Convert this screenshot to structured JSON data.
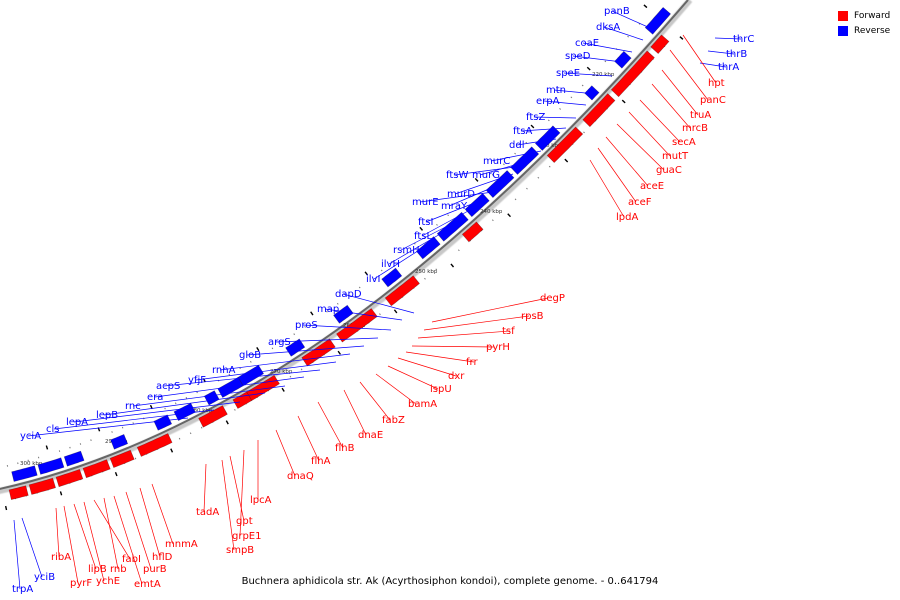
{
  "legend": {
    "forward_label": "Forward",
    "reverse_label": "Reverse",
    "forward_color": "#ff0000",
    "reverse_color": "#0000ff"
  },
  "caption": "Buchnera aphidicola str. Ak (Acyrthosiphon kondoi), complete genome. - 0..641794",
  "kbp_ticks": [
    "220 kbp",
    "230 kbp",
    "240 kbp",
    "250 kbp",
    "260 kbp",
    "270 kbp",
    "280 kbp",
    "290 kbp",
    "300 kbp"
  ],
  "reverse_genes": [
    "thrC",
    "thrB",
    "thrA",
    "panB",
    "dksA",
    "coaE",
    "speD",
    "speE",
    "mtn",
    "erpA",
    "ftsZ",
    "ftsA",
    "ddl",
    "murC",
    "murG",
    "ftsW",
    "murD",
    "mraY",
    "murE",
    "ftsI",
    "ftsL",
    "rsmH",
    "ilvH",
    "ilvI",
    "dapD",
    "map",
    "proS",
    "argS",
    "gloB",
    "rnhA",
    "yfjF",
    "acpS",
    "era",
    "rnc",
    "lepB",
    "lepA",
    "cls",
    "yciA",
    "yciB",
    "trpA"
  ],
  "forward_genes": [
    "hpt",
    "panC",
    "truA",
    "mrcB",
    "secA",
    "mutT",
    "guaC",
    "aceE",
    "aceF",
    "lpdA",
    "degP",
    "rpsB",
    "tsf",
    "pyrH",
    "frr",
    "dxr",
    "ispU",
    "bamA",
    "fabZ",
    "dnaE",
    "flhB",
    "flhA",
    "dnaQ",
    "lpcA",
    "grpE1",
    "gpt",
    "smpB",
    "tadA",
    "mnmA",
    "hflD",
    "purB",
    "emtA",
    "rnb",
    "fabI",
    "ychE",
    "lipB",
    "pyrF",
    "ribA"
  ]
}
